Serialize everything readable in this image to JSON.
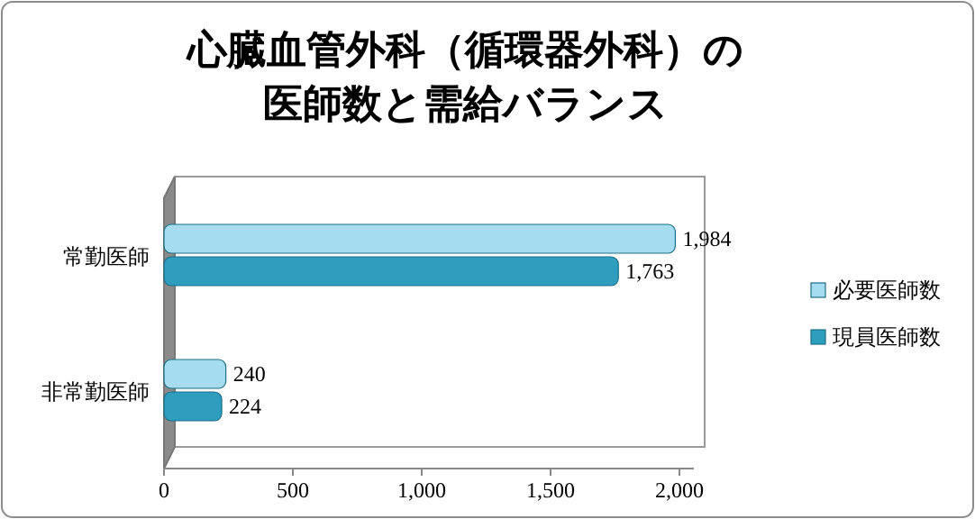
{
  "chart_data": {
    "type": "bar",
    "orientation": "horizontal",
    "title": "心臓血管外科（循環器外科）の医師数と需給バランス",
    "categories": [
      "常勤医師",
      "非常勤医師"
    ],
    "series": [
      {
        "name": "必要医師数",
        "color": "#a6dcef",
        "values": [
          1984,
          240
        ],
        "value_labels": [
          "1,984",
          "240"
        ]
      },
      {
        "name": "現員医師数",
        "color": "#2f9dbd",
        "values": [
          1763,
          224
        ],
        "value_labels": [
          "1,763",
          "224"
        ]
      }
    ],
    "xlim": [
      0,
      2000
    ],
    "xticks": [
      {
        "value": 0,
        "label": "0"
      },
      {
        "value": 500,
        "label": "500"
      },
      {
        "value": 1000,
        "label": "1,000"
      },
      {
        "value": 1500,
        "label": "1,500"
      },
      {
        "value": 2000,
        "label": "2,000"
      }
    ],
    "legend": "right",
    "grid": false
  }
}
